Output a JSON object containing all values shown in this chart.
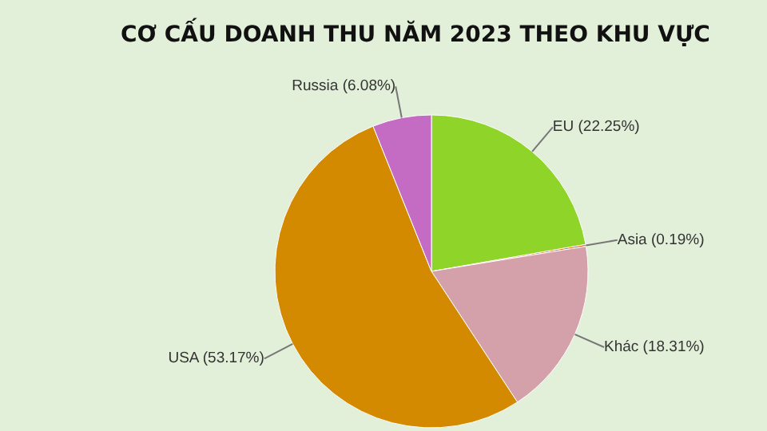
{
  "chart_data": {
    "type": "pie",
    "title": "CƠ CẤU DOANH THU NĂM 2023 THEO KHU VỰC",
    "categories": [
      "EU",
      "Asia",
      "Khác",
      "USA",
      "Russia"
    ],
    "values": [
      22.25,
      0.19,
      18.31,
      53.17,
      6.08
    ],
    "value_labels": [
      "(22.25%)",
      "(0.19%)",
      "(18.31%)",
      "(53.17%)",
      "(6.08%)"
    ],
    "colors": [
      "#8fd428",
      "#e0602a",
      "#d4a0aa",
      "#d38a00",
      "#c46cc4"
    ],
    "legend": false
  }
}
